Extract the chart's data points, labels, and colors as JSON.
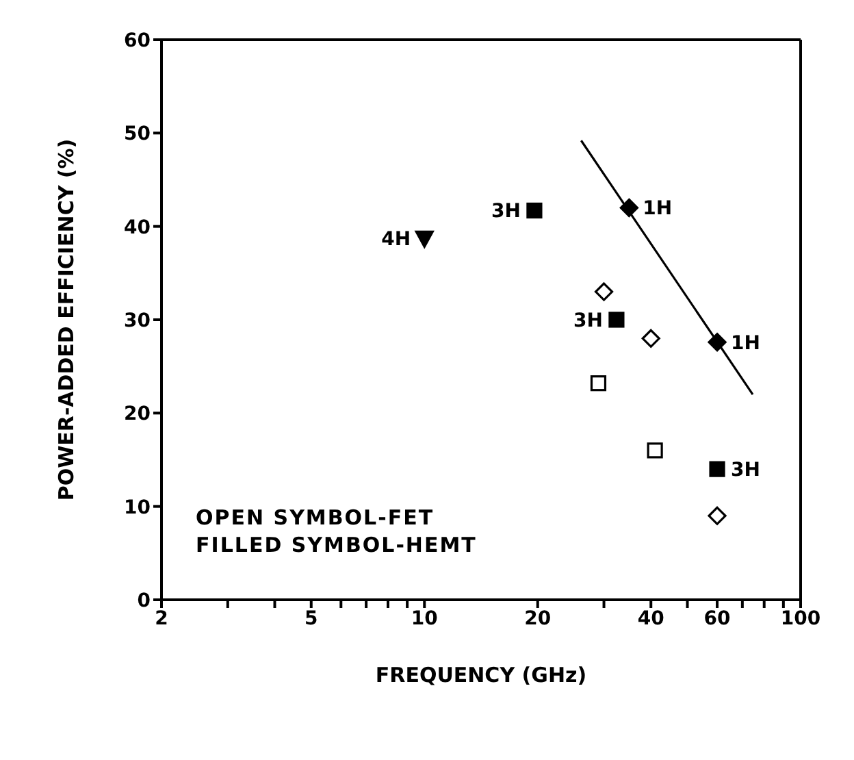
{
  "chart_data": {
    "type": "scatter",
    "xlabel": "FREQUENCY (GHz)",
    "ylabel": "POWER-ADDED EFFICIENCY (%)",
    "log": "x",
    "xlim": [
      2,
      100
    ],
    "ylim": [
      0,
      60
    ],
    "xticks": [
      2,
      {
        "value": 3,
        "label": null
      },
      {
        "value": 4,
        "label": null
      },
      5,
      {
        "value": 6,
        "label": null
      },
      {
        "value": 7,
        "label": null
      },
      {
        "value": 8,
        "label": null
      },
      {
        "value": 9,
        "label": null
      },
      10,
      20,
      {
        "value": 30,
        "label": null
      },
      40,
      {
        "value": 50,
        "label": null
      },
      60,
      {
        "value": 70,
        "label": null
      },
      {
        "value": 80,
        "label": null
      },
      {
        "value": 90,
        "label": null
      },
      100
    ],
    "yticks": [
      0,
      10,
      20,
      30,
      40,
      50,
      60
    ],
    "legend": false,
    "series": [
      {
        "color": "#000000",
        "marker": "diamond-open",
        "x": [
          30,
          40,
          60
        ],
        "values": [
          33,
          28,
          9
        ]
      },
      {
        "color": "#000000",
        "marker": "diamond",
        "x": [
          35,
          60
        ],
        "values": [
          42,
          27.6
        ]
      },
      {
        "color": "#000000",
        "marker": "square-open",
        "x": [
          29,
          41
        ],
        "values": [
          23.2,
          16
        ]
      },
      {
        "color": "#000000",
        "marker": "square",
        "x": [
          19.6,
          32.4,
          60
        ],
        "values": [
          41.7,
          30,
          14
        ]
      },
      {
        "color": "#000000",
        "marker": "triangle",
        "x": [
          10
        ],
        "values": [
          38.7
        ]
      },
      {
        "type": "line",
        "color": "#000000",
        "marker": "none",
        "x": [
          26.1,
          74.6
        ],
        "values": [
          49.2,
          22
        ]
      }
    ],
    "annotations": [
      {
        "text": "3H",
        "x": 19.6,
        "y": 41.7
      },
      {
        "text": "1H",
        "x": 35,
        "y": 42
      },
      {
        "text": "3H",
        "x": 32.4,
        "y": 30
      },
      {
        "text": "1H",
        "x": 60,
        "y": 27.6
      },
      {
        "text": "3H",
        "x": 60,
        "y": 14
      },
      {
        "text": "4H",
        "x": 10,
        "y": 38.7
      },
      "OPEN SYMBOL-FET",
      "FILLED SYMBOL-HEMT"
    ]
  }
}
